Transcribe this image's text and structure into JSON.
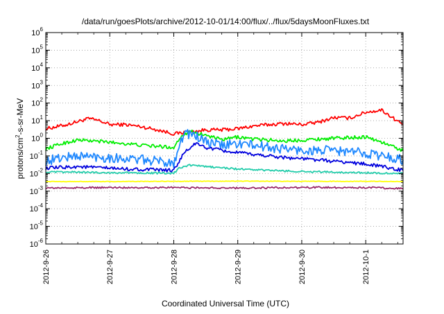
{
  "chart_data": {
    "type": "line",
    "title": "/data/run/goesPlots/archive/2012-10-01/14:00/flux/../flux/5daysMoonFluxes.txt",
    "xlabel": "Coordinated Universal Time (UTC)",
    "ylabel": {
      "prefix": "protons/cm",
      "superscript": "2",
      "suffix": "-s-sr-MeV"
    },
    "yscale": "log",
    "ylim": [
      1e-06,
      1000000.0
    ],
    "y_tick_labels": [
      {
        "base": "10",
        "exp": "-6"
      },
      {
        "base": "10",
        "exp": "-5"
      },
      {
        "base": "10",
        "exp": "-4"
      },
      {
        "base": "10",
        "exp": "-3"
      },
      {
        "base": "10",
        "exp": "-2"
      },
      {
        "base": "10",
        "exp": "-1"
      },
      {
        "base": "10",
        "exp": "0"
      },
      {
        "base": "10",
        "exp": "1"
      },
      {
        "base": "10",
        "exp": "2"
      },
      {
        "base": "10",
        "exp": "3"
      },
      {
        "base": "10",
        "exp": "4"
      },
      {
        "base": "10",
        "exp": "5"
      },
      {
        "base": "10",
        "exp": "6"
      }
    ],
    "xlim": [
      "2012-09-26 00:00",
      "2012-10-01 14:00"
    ],
    "x_tick_labels": [
      "2012-9-26",
      "2012-9-27",
      "2012-9-28",
      "2012-9-29",
      "2012-9-30",
      "2012-10-1"
    ],
    "grid": true,
    "legend": "none",
    "series": [
      {
        "color": "#ff0000",
        "x": [
          "2012-09-26 00:00",
          "2012-09-26 04:00",
          "2012-09-26 08:00",
          "2012-09-26 12:00",
          "2012-09-26 16:00",
          "2012-09-26 20:00",
          "2012-09-27 00:00",
          "2012-09-27 06:00",
          "2012-09-27 12:00",
          "2012-09-27 18:00",
          "2012-09-28 00:00",
          "2012-09-28 03:00",
          "2012-09-28 06:00",
          "2012-09-28 12:00",
          "2012-09-28 18:00",
          "2012-09-29 00:00",
          "2012-09-29 06:00",
          "2012-09-29 12:00",
          "2012-09-29 18:00",
          "2012-09-30 00:00",
          "2012-09-30 06:00",
          "2012-09-30 12:00",
          "2012-09-30 18:00",
          "2012-10-01 00:00",
          "2012-10-01 06:00",
          "2012-10-01 10:00",
          "2012-10-01 14:00"
        ],
        "y": [
          3.5,
          4.5,
          6,
          9,
          13,
          10,
          6,
          6,
          4.5,
          3,
          1.8,
          2,
          2.2,
          3,
          3,
          3.5,
          5,
          6,
          7,
          6,
          8,
          15,
          14,
          30,
          40,
          15,
          6
        ]
      },
      {
        "color": "#00ee00",
        "x": [
          "2012-09-26 00:00",
          "2012-09-26 06:00",
          "2012-09-26 12:00",
          "2012-09-26 18:00",
          "2012-09-27 00:00",
          "2012-09-27 06:00",
          "2012-09-27 12:00",
          "2012-09-27 18:00",
          "2012-09-28 00:00",
          "2012-09-28 03:00",
          "2012-09-28 06:00",
          "2012-09-28 12:00",
          "2012-09-28 18:00",
          "2012-09-29 00:00",
          "2012-09-29 06:00",
          "2012-09-29 12:00",
          "2012-09-29 18:00",
          "2012-09-30 00:00",
          "2012-09-30 12:00",
          "2012-10-01 00:00",
          "2012-10-01 06:00",
          "2012-10-01 14:00"
        ],
        "y": [
          0.25,
          0.5,
          0.8,
          0.7,
          0.6,
          0.5,
          0.4,
          0.35,
          0.3,
          1.5,
          2.5,
          1.5,
          0.8,
          1.2,
          0.9,
          0.8,
          0.7,
          0.8,
          1,
          1.2,
          0.6,
          0.2
        ]
      },
      {
        "color": "#1e88ff",
        "x": [
          "2012-09-26 00:00",
          "2012-09-26 06:00",
          "2012-09-26 12:00",
          "2012-09-26 18:00",
          "2012-09-27 00:00",
          "2012-09-27 06:00",
          "2012-09-27 12:00",
          "2012-09-27 18:00",
          "2012-09-28 00:00",
          "2012-09-28 02:00",
          "2012-09-28 04:00",
          "2012-09-28 08:00",
          "2012-09-28 12:00",
          "2012-09-28 18:00",
          "2012-09-29 00:00",
          "2012-09-29 06:00",
          "2012-09-29 12:00",
          "2012-09-29 18:00",
          "2012-09-30 00:00",
          "2012-09-30 12:00",
          "2012-10-01 00:00",
          "2012-10-01 06:00",
          "2012-10-01 14:00"
        ],
        "y": [
          0.05,
          0.08,
          0.1,
          0.09,
          0.08,
          0.07,
          0.06,
          0.05,
          0.04,
          0.4,
          2,
          1.5,
          0.6,
          0.4,
          0.5,
          0.4,
          0.3,
          0.25,
          0.2,
          0.2,
          0.15,
          0.1,
          0.06
        ]
      },
      {
        "color": "#0000dd",
        "x": [
          "2012-09-26 00:00",
          "2012-09-26 06:00",
          "2012-09-26 12:00",
          "2012-09-26 18:00",
          "2012-09-27 00:00",
          "2012-09-27 06:00",
          "2012-09-27 12:00",
          "2012-09-27 18:00",
          "2012-09-28 00:00",
          "2012-09-28 02:00",
          "2012-09-28 04:00",
          "2012-09-28 08:00",
          "2012-09-28 12:00",
          "2012-09-28 18:00",
          "2012-09-29 00:00",
          "2012-09-29 06:00",
          "2012-09-29 12:00",
          "2012-09-29 18:00",
          "2012-09-30 00:00",
          "2012-09-30 12:00",
          "2012-10-01 00:00",
          "2012-10-01 06:00",
          "2012-10-01 14:00"
        ],
        "y": [
          0.02,
          0.022,
          0.025,
          0.022,
          0.02,
          0.018,
          0.017,
          0.016,
          0.015,
          0.05,
          0.15,
          0.5,
          0.3,
          0.2,
          0.15,
          0.12,
          0.1,
          0.08,
          0.07,
          0.05,
          0.035,
          0.025,
          0.015
        ]
      },
      {
        "color": "#22ccaa",
        "x": [
          "2012-09-26 00:00",
          "2012-09-26 12:00",
          "2012-09-27 00:00",
          "2012-09-27 12:00",
          "2012-09-28 00:00",
          "2012-09-28 02:00",
          "2012-09-28 06:00",
          "2012-09-28 12:00",
          "2012-09-29 00:00",
          "2012-09-29 12:00",
          "2012-09-30 00:00",
          "2012-09-30 12:00",
          "2012-10-01 00:00",
          "2012-10-01 14:00"
        ],
        "y": [
          0.012,
          0.012,
          0.011,
          0.011,
          0.01,
          0.02,
          0.03,
          0.025,
          0.018,
          0.015,
          0.013,
          0.012,
          0.011,
          0.01
        ]
      },
      {
        "color": "#ffff00",
        "x": [
          "2012-09-26 00:00",
          "2012-09-27 00:00",
          "2012-09-28 00:00",
          "2012-09-29 00:00",
          "2012-09-30 00:00",
          "2012-10-01 00:00",
          "2012-10-01 14:00"
        ],
        "y": [
          0.0035,
          0.0035,
          0.0036,
          0.0037,
          0.0036,
          0.0036,
          0.0035
        ]
      },
      {
        "color": "#9a2a6a",
        "x": [
          "2012-09-26 00:00",
          "2012-09-27 00:00",
          "2012-09-28 00:00",
          "2012-09-29 00:00",
          "2012-09-30 00:00",
          "2012-10-01 00:00",
          "2012-10-01 14:00"
        ],
        "y": [
          0.0015,
          0.0016,
          0.0016,
          0.0015,
          0.0016,
          0.0016,
          0.0014
        ]
      }
    ]
  }
}
